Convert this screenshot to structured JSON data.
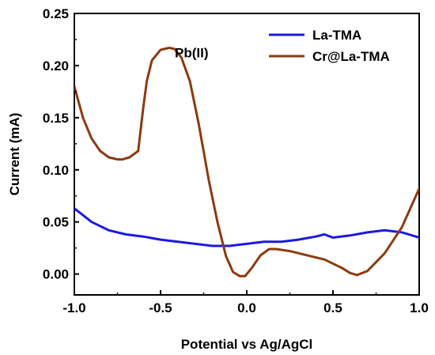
{
  "chart_data": {
    "type": "line",
    "xlabel": "Potential vs Ag/AgCl",
    "ylabel": "Current (mA)",
    "xlim": [
      -1.0,
      1.0
    ],
    "ylim": [
      -0.02,
      0.25
    ],
    "x_ticks": [
      "-1.0",
      "-0.5",
      "0.0",
      "0.5",
      "1.0"
    ],
    "x_tick_values": [
      -1.0,
      -0.5,
      0.0,
      0.5,
      1.0
    ],
    "y_ticks": [
      "0.00",
      "0.05",
      "0.10",
      "0.15",
      "0.20",
      "0.25"
    ],
    "y_tick_values": [
      0.0,
      0.05,
      0.1,
      0.15,
      0.2,
      0.25
    ],
    "legend_position": "top-right",
    "annotation": {
      "text": "Pb(II)",
      "x": -0.32,
      "y": 0.208
    },
    "series": [
      {
        "name": "La-TMA",
        "color": "#1a1adf",
        "x": [
          -1.0,
          -0.9,
          -0.8,
          -0.7,
          -0.6,
          -0.5,
          -0.4,
          -0.3,
          -0.2,
          -0.1,
          0.0,
          0.1,
          0.2,
          0.3,
          0.4,
          0.45,
          0.5,
          0.6,
          0.7,
          0.8,
          0.9,
          1.0
        ],
        "y": [
          0.063,
          0.05,
          0.042,
          0.038,
          0.036,
          0.033,
          0.031,
          0.029,
          0.027,
          0.027,
          0.029,
          0.031,
          0.031,
          0.033,
          0.036,
          0.038,
          0.035,
          0.037,
          0.04,
          0.042,
          0.04,
          0.035
        ]
      },
      {
        "name": "Cr@La-TMA",
        "color": "#8b3a0f",
        "x": [
          -1.0,
          -0.95,
          -0.9,
          -0.85,
          -0.8,
          -0.75,
          -0.72,
          -0.68,
          -0.63,
          -0.6,
          -0.58,
          -0.55,
          -0.5,
          -0.45,
          -0.42,
          -0.38,
          -0.33,
          -0.28,
          -0.22,
          -0.17,
          -0.12,
          -0.08,
          -0.04,
          -0.01,
          0.03,
          0.08,
          0.13,
          0.17,
          0.25,
          0.35,
          0.45,
          0.55,
          0.6,
          0.64,
          0.7,
          0.8,
          0.9,
          1.0
        ],
        "y": [
          0.18,
          0.15,
          0.13,
          0.118,
          0.112,
          0.11,
          0.11,
          0.112,
          0.118,
          0.16,
          0.185,
          0.205,
          0.215,
          0.217,
          0.216,
          0.208,
          0.185,
          0.145,
          0.09,
          0.05,
          0.017,
          0.002,
          -0.002,
          -0.002,
          0.006,
          0.018,
          0.024,
          0.024,
          0.022,
          0.018,
          0.014,
          0.006,
          0.001,
          -0.001,
          0.003,
          0.02,
          0.045,
          0.082
        ]
      }
    ]
  }
}
